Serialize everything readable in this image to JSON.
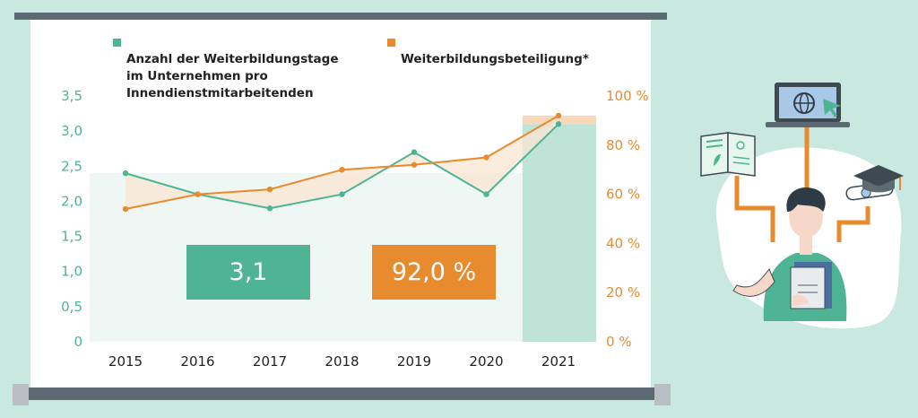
{
  "chart_data": {
    "type": "line",
    "categories": [
      "2015",
      "2016",
      "2017",
      "2018",
      "2019",
      "2020",
      "2021"
    ],
    "series": [
      {
        "name": "Anzahl der Weiterbildungstage\nim Unternehmen pro\nInnendienstmitarbeitenden",
        "axis": "left",
        "values": [
          2.4,
          2.1,
          1.9,
          2.1,
          2.7,
          2.1,
          3.1
        ]
      },
      {
        "name": "Weiterbildungsbeteiligung*",
        "axis": "right",
        "values": [
          54,
          60,
          62,
          70,
          72,
          75,
          92
        ]
      }
    ],
    "y_left": {
      "ticks": [
        "0",
        "0,5",
        "1,0",
        "1,5",
        "2,0",
        "2,5",
        "3,0",
        "3,5"
      ],
      "ylim": [
        0,
        3.5
      ]
    },
    "y_right": {
      "ticks": [
        "0 %",
        "20 %",
        "40 %",
        "60 %",
        "80 %",
        "100 %"
      ],
      "ylim": [
        0,
        100
      ]
    },
    "highlight": {
      "kpi_days": "3,1",
      "kpi_participation": "92,0 %"
    },
    "grid": false,
    "legend_placement": "top"
  },
  "colors": {
    "green": "#4fb494",
    "orange": "#e88b2e",
    "background": "#c8e8e0",
    "board_frame": "#5e6a73"
  },
  "illustration": "person-with-education-icons"
}
